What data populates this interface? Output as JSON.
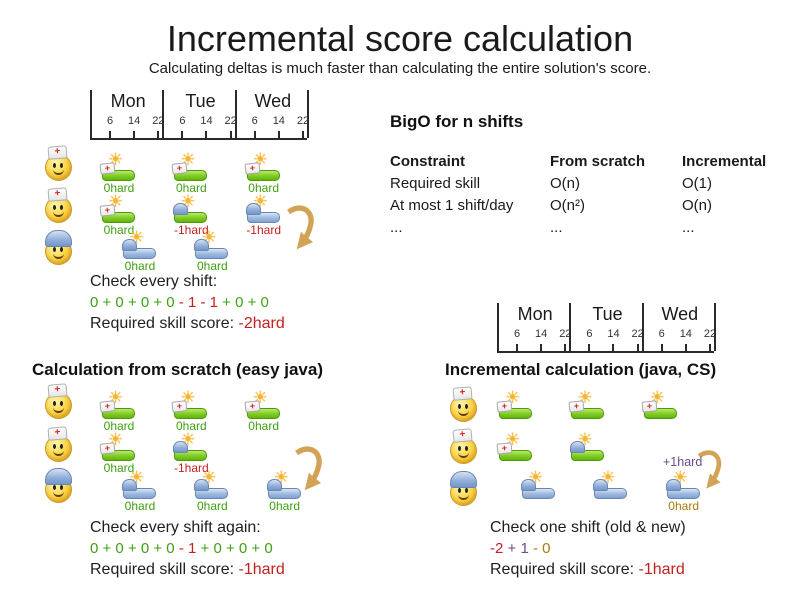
{
  "title": "Incremental score calculation",
  "subtitle": "Calculating deltas is much faster than calculating the entire solution's score.",
  "colors": {
    "green": "#3fa113",
    "red": "#c5201d",
    "purple": "#6e4a91",
    "gold": "#a8790e",
    "black": "#1f1f1f",
    "arrow": "#d2a356"
  },
  "timeline": {
    "days": [
      "Mon",
      "Tue",
      "Wed"
    ],
    "hours": [
      "6",
      "14",
      "22"
    ]
  },
  "bigO": {
    "title": "BigO for n shifts",
    "columns": [
      "Constraint",
      "From scratch",
      "Incremental"
    ],
    "rows": [
      [
        "Required skill",
        "O(n)",
        "O(1)"
      ],
      [
        "At most 1 shift/day",
        "O(n²)",
        "O(n)"
      ],
      [
        "...",
        "...",
        "..."
      ]
    ]
  },
  "sections": {
    "initial": {
      "text_intro": "Check every shift:",
      "formula": [
        {
          "t": "0 + 0 + 0 + 0",
          "c": "green"
        },
        {
          "t": " - 1 - 1",
          "c": "red"
        },
        {
          "t": " + 0 + 0",
          "c": "green"
        }
      ],
      "score": [
        {
          "t": "Required skill score: ",
          "c": "black"
        },
        {
          "t": "-2hard",
          "c": "red"
        }
      ],
      "rows": [
        {
          "person": "nurse",
          "shifts": [
            {
              "day": 0,
              "slot": "early",
              "bar": "green",
              "hat": "nurse",
              "label": "0hard",
              "color": "green"
            },
            {
              "day": 1,
              "slot": "early",
              "bar": "green",
              "hat": "nurse",
              "label": "0hard",
              "color": "green"
            },
            {
              "day": 2,
              "slot": "early",
              "bar": "green",
              "hat": "nurse",
              "label": "0hard",
              "color": "green"
            }
          ]
        },
        {
          "person": "nurse",
          "shifts": [
            {
              "day": 0,
              "slot": "early",
              "bar": "green",
              "hat": "nurse",
              "label": "0hard",
              "color": "green"
            },
            {
              "day": 1,
              "slot": "early",
              "bar": "green",
              "hat": "builder",
              "label": "-1hard",
              "color": "red"
            },
            {
              "day": 2,
              "slot": "early",
              "bar": "blue",
              "hat": "builder",
              "label": "-1hard",
              "color": "red"
            }
          ]
        },
        {
          "person": "builder",
          "shifts": [
            {
              "day": 0,
              "slot": "late",
              "bar": "blue",
              "hat": "builder",
              "label": "0hard",
              "color": "green"
            },
            {
              "day": 1,
              "slot": "late",
              "bar": "blue",
              "hat": "builder",
              "label": "0hard",
              "color": "green"
            }
          ]
        }
      ]
    },
    "scratch": {
      "heading": "Calculation from scratch (easy java)",
      "text_intro": "Check every shift again:",
      "formula": [
        {
          "t": "0 + 0 + 0 + 0",
          "c": "green"
        },
        {
          "t": " - 1",
          "c": "red"
        },
        {
          "t": " + 0 + 0 + 0",
          "c": "green"
        }
      ],
      "score": [
        {
          "t": "Required skill score: ",
          "c": "black"
        },
        {
          "t": "-1hard",
          "c": "red"
        }
      ],
      "rows": [
        {
          "person": "nurse",
          "shifts": [
            {
              "day": 0,
              "slot": "early",
              "bar": "green",
              "hat": "nurse",
              "label": "0hard",
              "color": "green"
            },
            {
              "day": 1,
              "slot": "early",
              "bar": "green",
              "hat": "nurse",
              "label": "0hard",
              "color": "green"
            },
            {
              "day": 2,
              "slot": "early",
              "bar": "green",
              "hat": "nurse",
              "label": "0hard",
              "color": "green"
            }
          ]
        },
        {
          "person": "nurse",
          "shifts": [
            {
              "day": 0,
              "slot": "early",
              "bar": "green",
              "hat": "nurse",
              "label": "0hard",
              "color": "green"
            },
            {
              "day": 1,
              "slot": "early",
              "bar": "green",
              "hat": "builder",
              "label": "-1hard",
              "color": "red"
            }
          ]
        },
        {
          "person": "builder",
          "shifts": [
            {
              "day": 0,
              "slot": "late",
              "bar": "blue",
              "hat": "builder",
              "label": "0hard",
              "color": "green"
            },
            {
              "day": 1,
              "slot": "late",
              "bar": "blue",
              "hat": "builder",
              "label": "0hard",
              "color": "green"
            },
            {
              "day": 2,
              "slot": "late",
              "bar": "blue",
              "hat": "builder",
              "label": "0hard",
              "color": "green"
            }
          ]
        }
      ]
    },
    "incremental": {
      "heading": "Incremental calculation (java, CS)",
      "arrow_label": [
        {
          "t": "+1hard",
          "c": "purple"
        }
      ],
      "text_intro": "Check one shift (old & new)",
      "formula": [
        {
          "t": "-2",
          "c": "red"
        },
        {
          "t": " + 1",
          "c": "purple"
        },
        {
          "t": " - 0",
          "c": "gold"
        }
      ],
      "score": [
        {
          "t": "Required skill score: ",
          "c": "black"
        },
        {
          "t": "-1hard",
          "c": "red"
        }
      ],
      "rows": [
        {
          "person": "nurse",
          "shifts": [
            {
              "day": 0,
              "slot": "early",
              "bar": "green",
              "hat": "nurse"
            },
            {
              "day": 1,
              "slot": "early",
              "bar": "green",
              "hat": "nurse"
            },
            {
              "day": 2,
              "slot": "early",
              "bar": "green",
              "hat": "nurse"
            }
          ]
        },
        {
          "person": "nurse",
          "shifts": [
            {
              "day": 0,
              "slot": "early",
              "bar": "green",
              "hat": "nurse"
            },
            {
              "day": 1,
              "slot": "early",
              "bar": "green",
              "hat": "builder"
            }
          ]
        },
        {
          "person": "builder",
          "shifts": [
            {
              "day": 0,
              "slot": "late",
              "bar": "blue",
              "hat": "builder"
            },
            {
              "day": 1,
              "slot": "late",
              "bar": "blue",
              "hat": "builder"
            },
            {
              "day": 2,
              "slot": "late",
              "bar": "blue",
              "hat": "builder",
              "label": "0hard",
              "color": "gold"
            }
          ]
        }
      ]
    }
  }
}
